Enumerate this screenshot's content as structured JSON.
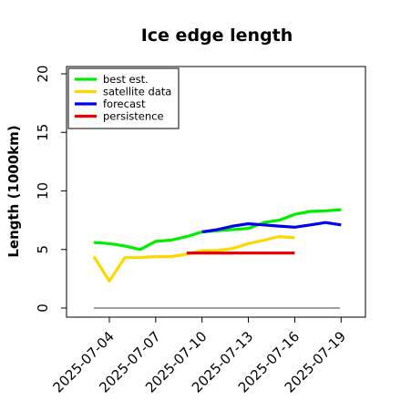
{
  "chart_data": {
    "type": "line",
    "title": "Ice edge length",
    "xlabel": "",
    "ylabel": "Length (1000km)",
    "ylim": [
      0,
      20
    ],
    "xlim": [
      "2025-07-02",
      "2025-07-21"
    ],
    "yticks": [
      "0",
      "5",
      "10",
      "15",
      "20"
    ],
    "xticks": [
      "2025-07-04",
      "2025-07-07",
      "2025-07-10",
      "2025-07-13",
      "2025-07-16",
      "2025-07-19"
    ],
    "highlight_tick": "2025-07-10",
    "highlight_color": "#228B22",
    "legend_position": "top-left",
    "grid": false,
    "reference_line": {
      "y": 0,
      "color": "#808080"
    },
    "series": [
      {
        "name": "best est.",
        "color": "#00ee00",
        "x": [
          "2025-07-03",
          "2025-07-04",
          "2025-07-05",
          "2025-07-06",
          "2025-07-07",
          "2025-07-08",
          "2025-07-09",
          "2025-07-10",
          "2025-07-11",
          "2025-07-12",
          "2025-07-13",
          "2025-07-14",
          "2025-07-15",
          "2025-07-16",
          "2025-07-17",
          "2025-07-18",
          "2025-07-19"
        ],
        "y": [
          5.6,
          5.5,
          5.3,
          5.0,
          5.7,
          5.8,
          6.1,
          6.5,
          6.6,
          6.7,
          6.8,
          7.3,
          7.5,
          8.0,
          8.25,
          8.3,
          8.4
        ]
      },
      {
        "name": "satellite data",
        "color": "#ffd700",
        "x": [
          "2025-07-03",
          "2025-07-04",
          "2025-07-05",
          "2025-07-06",
          "2025-07-07",
          "2025-07-08",
          "2025-07-09",
          "2025-07-10",
          "2025-07-11",
          "2025-07-12",
          "2025-07-13",
          "2025-07-14",
          "2025-07-15",
          "2025-07-16"
        ],
        "y": [
          4.4,
          2.3,
          4.3,
          4.3,
          4.4,
          4.4,
          4.6,
          4.9,
          4.9,
          5.1,
          5.5,
          5.8,
          6.1,
          6.0
        ]
      },
      {
        "name": "forecast",
        "color": "#0000ee",
        "x": [
          "2025-07-10",
          "2025-07-11",
          "2025-07-12",
          "2025-07-13",
          "2025-07-14",
          "2025-07-15",
          "2025-07-16",
          "2025-07-17",
          "2025-07-18",
          "2025-07-19"
        ],
        "y": [
          6.5,
          6.7,
          7.0,
          7.2,
          7.1,
          7.0,
          6.9,
          7.1,
          7.3,
          7.1
        ]
      },
      {
        "name": "persistence",
        "color": "#ee0000",
        "x": [
          "2025-07-09",
          "2025-07-16"
        ],
        "y": [
          4.7,
          4.7
        ]
      }
    ]
  }
}
